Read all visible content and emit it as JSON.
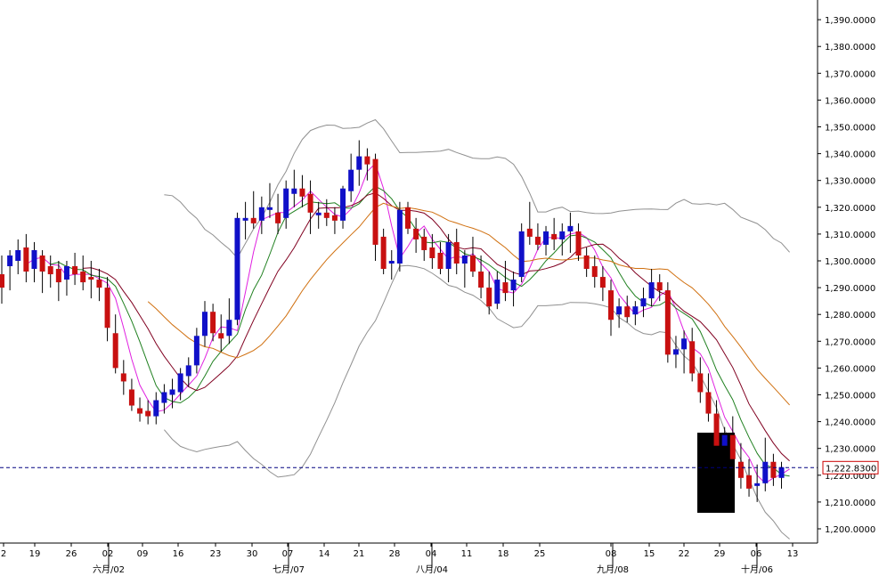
{
  "chart_data": {
    "type": "candlestick",
    "ylim": [
      1194,
      1394
    ],
    "y_ticks": [
      1390,
      1380,
      1370,
      1360,
      1350,
      1340,
      1330,
      1320,
      1310,
      1300,
      1290,
      1280,
      1270,
      1260,
      1250,
      1240,
      1230,
      1220,
      1210,
      1200
    ],
    "y_tick_labels": [
      "1,390.0000",
      "1,380.0000",
      "1,370.0000",
      "1,360.0000",
      "1,350.0000",
      "1,340.0000",
      "1,330.0000",
      "1,320.0000",
      "1,310.0000",
      "1,300.0000",
      "1,290.0000",
      "1,280.0000",
      "1,270.0000",
      "1,260.0000",
      "1,250.0000",
      "1,240.0000",
      "1,230.0000",
      "1,220.0000",
      "1,210.0000",
      "1,200.0000"
    ],
    "x_day_labels": [
      "2",
      "19",
      "26",
      "02",
      "09",
      "16",
      "23",
      "30",
      "07",
      "14",
      "21",
      "28",
      "04",
      "11",
      "18",
      "25",
      "08",
      "15",
      "22",
      "29",
      "06",
      "13"
    ],
    "x_month_labels": [
      "六月/02",
      "七月/07",
      "八月/04",
      "九月/08",
      "十月/06"
    ],
    "last_price": 1222.83,
    "last_price_label": "1,222.8300",
    "grid": false,
    "colors": {
      "up": "#1010c8",
      "down": "#c81010",
      "bollinger": "#909090",
      "ma_fast": "#e020e0",
      "ma_mid": "#208020",
      "ma_slow": "#800020",
      "ma_long": "#d07010",
      "last_price_line": "#000080",
      "highlight": "#000000"
    },
    "candles": [
      [
        1295,
        1302,
        1284,
        1290
      ],
      [
        1298,
        1304,
        1289,
        1302
      ],
      [
        1300,
        1308,
        1295,
        1304
      ],
      [
        1305,
        1310,
        1292,
        1296
      ],
      [
        1297,
        1307,
        1292,
        1304
      ],
      [
        1302,
        1304,
        1288,
        1296
      ],
      [
        1298,
        1302,
        1290,
        1295
      ],
      [
        1297,
        1300,
        1285,
        1292
      ],
      [
        1293,
        1300,
        1287,
        1298
      ],
      [
        1298,
        1303,
        1291,
        1295
      ],
      [
        1296,
        1302,
        1289,
        1292
      ],
      [
        1294,
        1300,
        1286,
        1293
      ],
      [
        1293,
        1297,
        1285,
        1290
      ],
      [
        1290,
        1294,
        1270,
        1275
      ],
      [
        1273,
        1280,
        1258,
        1260
      ],
      [
        1258,
        1263,
        1250,
        1255
      ],
      [
        1252,
        1256,
        1244,
        1246
      ],
      [
        1245,
        1249,
        1240,
        1243
      ],
      [
        1244,
        1248,
        1239,
        1242
      ],
      [
        1242,
        1251,
        1239,
        1248
      ],
      [
        1247,
        1254,
        1243,
        1251
      ],
      [
        1250,
        1256,
        1245,
        1252
      ],
      [
        1251,
        1260,
        1248,
        1258
      ],
      [
        1257,
        1264,
        1253,
        1261
      ],
      [
        1261,
        1275,
        1258,
        1272
      ],
      [
        1272,
        1285,
        1268,
        1281
      ],
      [
        1281,
        1284,
        1270,
        1273
      ],
      [
        1273,
        1280,
        1266,
        1271
      ],
      [
        1272,
        1286,
        1269,
        1278
      ],
      [
        1278,
        1318,
        1276,
        1316
      ],
      [
        1315,
        1322,
        1308,
        1316
      ],
      [
        1316,
        1326,
        1312,
        1314
      ],
      [
        1315,
        1324,
        1310,
        1320
      ],
      [
        1319,
        1329,
        1316,
        1320
      ],
      [
        1318,
        1325,
        1310,
        1314
      ],
      [
        1316,
        1330,
        1312,
        1327
      ],
      [
        1325,
        1334,
        1320,
        1327
      ],
      [
        1327,
        1332,
        1320,
        1324
      ],
      [
        1325,
        1330,
        1310,
        1318
      ],
      [
        1317,
        1322,
        1312,
        1318
      ],
      [
        1318,
        1323,
        1313,
        1316
      ],
      [
        1317,
        1320,
        1310,
        1315
      ],
      [
        1315,
        1328,
        1312,
        1327
      ],
      [
        1326,
        1340,
        1322,
        1334
      ],
      [
        1334,
        1345,
        1328,
        1339
      ],
      [
        1339,
        1342,
        1330,
        1336
      ],
      [
        1338,
        1340,
        1300,
        1306
      ],
      [
        1309,
        1312,
        1295,
        1297
      ],
      [
        1299,
        1304,
        1293,
        1300
      ],
      [
        1299,
        1322,
        1296,
        1319
      ],
      [
        1320,
        1322,
        1310,
        1312
      ],
      [
        1312,
        1316,
        1303,
        1308
      ],
      [
        1309,
        1312,
        1300,
        1304
      ],
      [
        1305,
        1310,
        1297,
        1301
      ],
      [
        1303,
        1307,
        1295,
        1297
      ],
      [
        1297,
        1310,
        1292,
        1307
      ],
      [
        1307,
        1312,
        1295,
        1299
      ],
      [
        1299,
        1304,
        1290,
        1302
      ],
      [
        1302,
        1309,
        1294,
        1296
      ],
      [
        1296,
        1302,
        1286,
        1290
      ],
      [
        1290,
        1296,
        1280,
        1283
      ],
      [
        1284,
        1296,
        1282,
        1293
      ],
      [
        1292,
        1300,
        1285,
        1288
      ],
      [
        1289,
        1296,
        1283,
        1293
      ],
      [
        1294,
        1314,
        1292,
        1311
      ],
      [
        1312,
        1322,
        1306,
        1309
      ],
      [
        1309,
        1314,
        1304,
        1306
      ],
      [
        1306,
        1313,
        1302,
        1311
      ],
      [
        1310,
        1316,
        1304,
        1308
      ],
      [
        1308,
        1314,
        1302,
        1311
      ],
      [
        1311,
        1318,
        1303,
        1313
      ],
      [
        1311,
        1314,
        1300,
        1302
      ],
      [
        1302,
        1305,
        1294,
        1297
      ],
      [
        1298,
        1302,
        1290,
        1294
      ],
      [
        1294,
        1298,
        1285,
        1290
      ],
      [
        1289,
        1293,
        1272,
        1278
      ],
      [
        1280,
        1286,
        1275,
        1283
      ],
      [
        1283,
        1287,
        1277,
        1279
      ],
      [
        1280,
        1285,
        1276,
        1283
      ],
      [
        1283,
        1290,
        1279,
        1286
      ],
      [
        1286,
        1297,
        1283,
        1292
      ],
      [
        1292,
        1295,
        1285,
        1289
      ],
      [
        1289,
        1292,
        1262,
        1265
      ],
      [
        1265,
        1272,
        1260,
        1267
      ],
      [
        1267,
        1274,
        1258,
        1271
      ],
      [
        1270,
        1275,
        1255,
        1258
      ],
      [
        1258,
        1264,
        1247,
        1251
      ],
      [
        1251,
        1258,
        1240,
        1243
      ],
      [
        1243,
        1248,
        1228,
        1231
      ],
      [
        1231,
        1238,
        1226,
        1235
      ],
      [
        1235,
        1242,
        1222,
        1226
      ],
      [
        1225,
        1232,
        1215,
        1219
      ],
      [
        1220,
        1226,
        1212,
        1215
      ],
      [
        1216,
        1224,
        1210,
        1217
      ],
      [
        1217,
        1234,
        1214,
        1225
      ],
      [
        1225,
        1228,
        1216,
        1219
      ],
      [
        1219,
        1225,
        1215,
        1223
      ]
    ]
  },
  "ui": {
    "price_box_label": "1,222.8300"
  }
}
